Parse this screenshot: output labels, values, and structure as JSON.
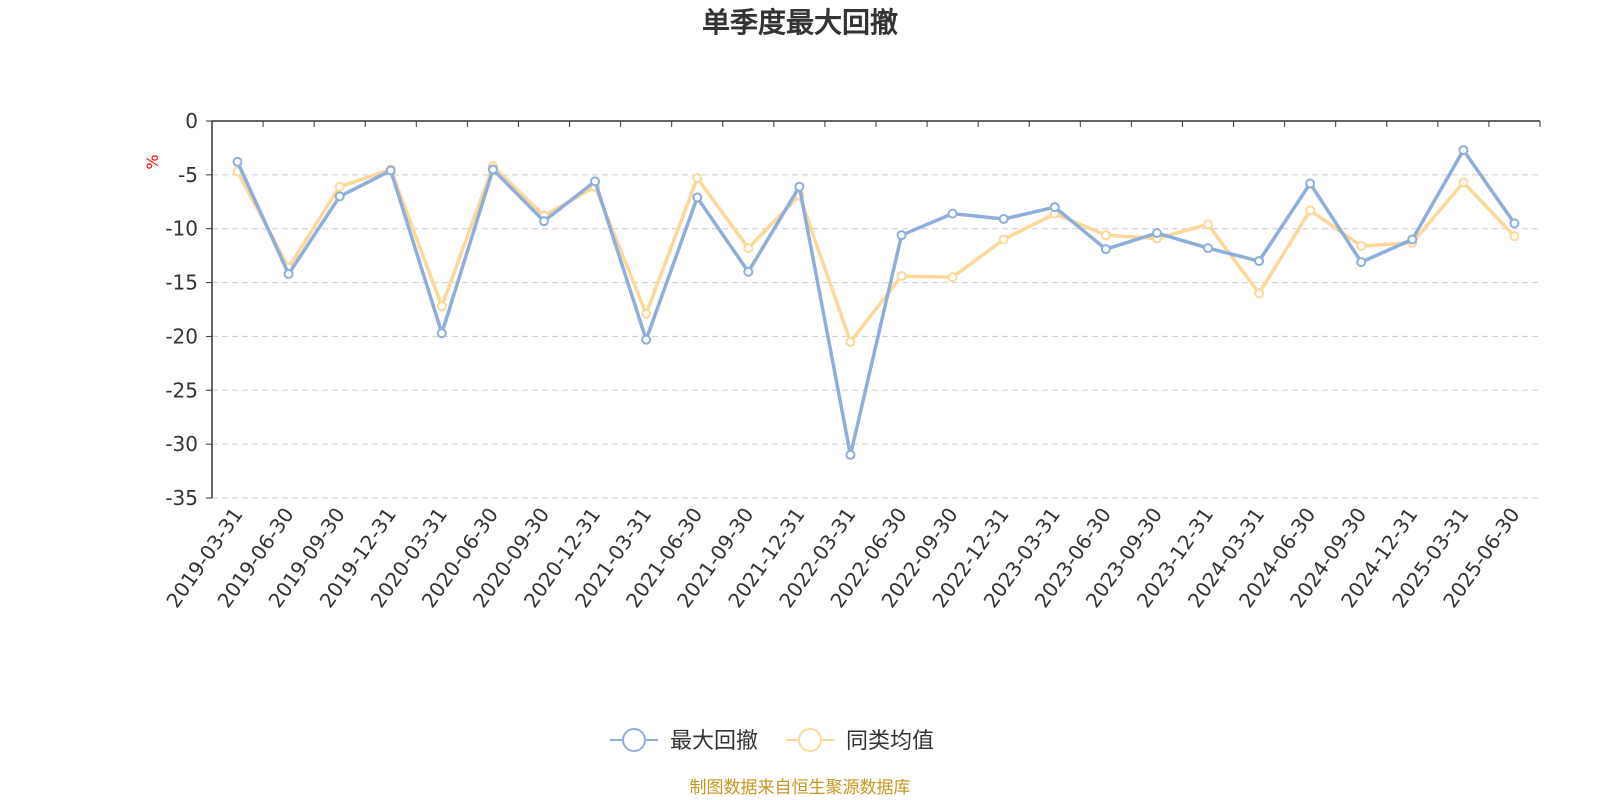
{
  "chart_data": {
    "type": "line",
    "title": "单季度最大回撤",
    "ylabel": "%",
    "ylim": [
      -35,
      0
    ],
    "yticks": [
      0,
      -5,
      -10,
      -15,
      -20,
      -25,
      -30,
      -35
    ],
    "grid": true,
    "legend_position": "bottom",
    "categories": [
      "2019-03-31",
      "2019-06-30",
      "2019-09-30",
      "2019-12-31",
      "2020-03-31",
      "2020-06-30",
      "2020-09-30",
      "2020-12-31",
      "2021-03-31",
      "2021-06-30",
      "2021-09-30",
      "2021-12-31",
      "2022-03-31",
      "2022-06-30",
      "2022-09-30",
      "2022-12-31",
      "2023-03-31",
      "2023-06-30",
      "2023-09-30",
      "2023-12-31",
      "2024-03-31",
      "2024-06-30",
      "2024-09-30",
      "2024-12-31",
      "2025-03-31",
      "2025-06-30"
    ],
    "series": [
      {
        "name": "最大回撤",
        "color": "#8eaedb",
        "values": [
          -3.8,
          -14.2,
          -7.0,
          -4.6,
          -19.7,
          -4.5,
          -9.3,
          -5.6,
          -20.3,
          -7.1,
          -14.0,
          -6.1,
          -31.0,
          -10.6,
          -8.6,
          -9.1,
          -8.0,
          -11.9,
          -10.4,
          -11.8,
          -13.0,
          -5.8,
          -13.1,
          -11.0,
          -2.7,
          -9.5
        ]
      },
      {
        "name": "同类均值",
        "color": "#fdd899",
        "values": [
          -4.7,
          -13.6,
          -6.1,
          -4.5,
          -17.2,
          -4.2,
          -8.8,
          -6.1,
          -17.9,
          -5.3,
          -11.8,
          -6.9,
          -20.5,
          -14.4,
          -14.5,
          -11.0,
          -8.6,
          -10.6,
          -10.9,
          -9.6,
          -16.0,
          -8.3,
          -11.6,
          -11.3,
          -5.7,
          -10.7
        ]
      }
    ]
  },
  "source_text": "制图数据来自恒生聚源数据库",
  "colors": {
    "axis": "#333333",
    "grid": "#cccccc",
    "unit": "#ff0000",
    "source": "#c8961e"
  }
}
